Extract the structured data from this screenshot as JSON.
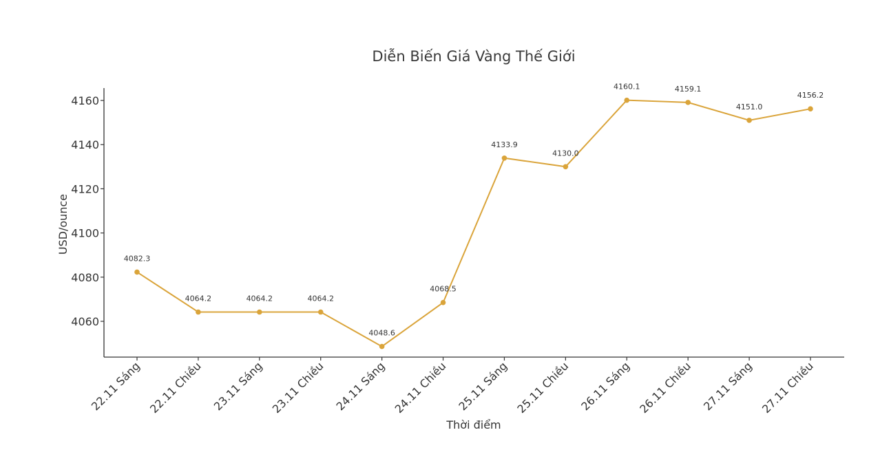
{
  "chart_data": {
    "type": "line",
    "title": "Diễn Biến Giá Vàng Thế Giới",
    "xlabel": "Thời điểm",
    "ylabel": "USD/ounce",
    "categories": [
      "22.11 Sáng",
      "22.11 Chiều",
      "23.11 Sáng",
      "23.11 Chiều",
      "24.11 Sáng",
      "24.11 Chiều",
      "25.11 Sáng",
      "25.11 Chiều",
      "26.11 Sáng",
      "26.11 Chiều",
      "27.11 Sáng",
      "27.11 Chiều"
    ],
    "series": [
      {
        "values": [
          4082.3,
          4064.2,
          4064.2,
          4064.2,
          4048.6,
          4068.5,
          4133.9,
          4130.0,
          4160.1,
          4159.1,
          4151.0,
          4156.2
        ],
        "color": "#DAA43A"
      }
    ],
    "data_labels": [
      "4082.3",
      "4064.2",
      "4064.2",
      "4064.2",
      "4048.6",
      "4068.5",
      "4133.9",
      "4130.0",
      "4160.1",
      "4159.1",
      "4151.0",
      "4156.2"
    ],
    "yticks": [
      4060,
      4080,
      4100,
      4120,
      4140,
      4160
    ],
    "ylim": [
      4043.8,
      4165.6
    ],
    "grid": false,
    "legend": "none"
  }
}
